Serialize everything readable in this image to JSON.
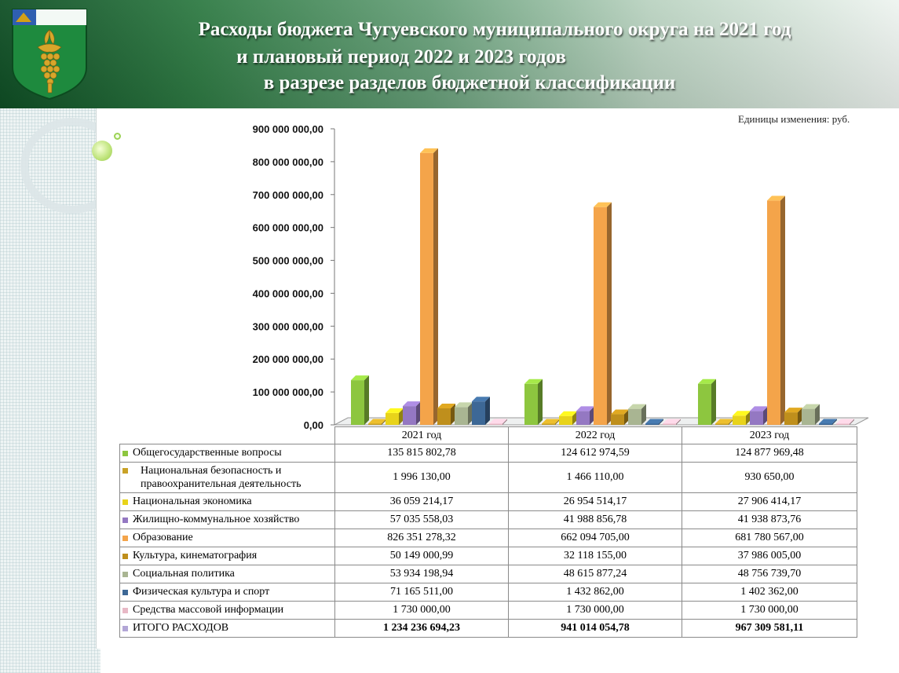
{
  "header": {
    "title_lines": [
      "Расходы бюджета Чугуевского муниципального округа на 2021 год",
      "и плановый период 2022 и 2023 годов",
      "в разрезе разделов бюджетной классификации"
    ],
    "emblem_icon": "coat-of-arms-icon"
  },
  "units_note": "Единицы изменения: руб.",
  "chart_data": {
    "type": "bar",
    "title": "",
    "xlabel": "",
    "ylabel": "",
    "ylim": [
      0,
      900000000
    ],
    "y_ticks": [
      "0,00",
      "100 000 000,00",
      "200 000 000,00",
      "300 000 000,00",
      "400 000 000,00",
      "500 000 000,00",
      "600 000 000,00",
      "700 000 000,00",
      "800 000 000,00",
      "900 000 000,00"
    ],
    "categories": [
      "2021 год",
      "2022 год",
      "2023 год"
    ],
    "series": [
      {
        "name": "Общегосударственные вопросы",
        "color": "#8dc63f",
        "values": [
          135815802.78,
          124612974.59,
          124877969.48
        ],
        "labels": [
          "135 815 802,78",
          "124 612 974,59",
          "124 877 969,48"
        ]
      },
      {
        "name": "Национальная безопасность и правоохранительная деятельность",
        "color": "#c9a227",
        "values": [
          1996130.0,
          1466110.0,
          930650.0
        ],
        "labels": [
          "1 996 130,00",
          "1 466 110,00",
          "930 650,00"
        ]
      },
      {
        "name": "Национальная экономика",
        "color": "#e8d31a",
        "values": [
          36059214.17,
          26954514.17,
          27906414.17
        ],
        "labels": [
          "36 059 214,17",
          "26 954 514,17",
          "27 906 414,17"
        ]
      },
      {
        "name": "Жилищно-коммунальное хозяйство",
        "color": "#9478c2",
        "values": [
          57035558.03,
          41988856.78,
          41938873.76
        ],
        "labels": [
          "57 035 558,03",
          "41 988 856,78",
          "41 938 873,76"
        ]
      },
      {
        "name": "Образование",
        "color": "#f4a44a",
        "values": [
          826351278.32,
          662094705.0,
          681780567.0
        ],
        "labels": [
          "826 351 278,32",
          "662 094 705,00",
          "681 780 567,00"
        ]
      },
      {
        "name": "Культура,  кинематография",
        "color": "#bf8f1c",
        "values": [
          50149000.99,
          32118155.0,
          37986005.0
        ],
        "labels": [
          "50 149 000,99",
          "32 118 155,00",
          "37 986 005,00"
        ]
      },
      {
        "name": "Социальная политика",
        "color": "#a9b592",
        "values": [
          53934198.94,
          48615877.24,
          48756739.7
        ],
        "labels": [
          "53 934 198,94",
          "48 615 877,24",
          "48 756 739,70"
        ]
      },
      {
        "name": "Физическая культура  и спорт",
        "color": "#3d6896",
        "values": [
          71165511.0,
          1432862.0,
          1402362.0
        ],
        "labels": [
          "71 165 511,00",
          "1 432 862,00",
          "1 402 362,00"
        ]
      },
      {
        "name": "Средства массовой информации",
        "color": "#e8b9c6",
        "values": [
          1730000.0,
          1730000.0,
          1730000.0
        ],
        "labels": [
          "1 730 000,00",
          "1 730 000,00",
          "1 730 000,00"
        ]
      }
    ],
    "totals": {
      "name": "ИТОГО РАСХОДОВ",
      "color": "#b2a6d6",
      "labels": [
        "1 234 236 694,23",
        "941 014 054,78",
        "967 309 581,11"
      ]
    },
    "grid": false,
    "legend": "data table below chart"
  }
}
